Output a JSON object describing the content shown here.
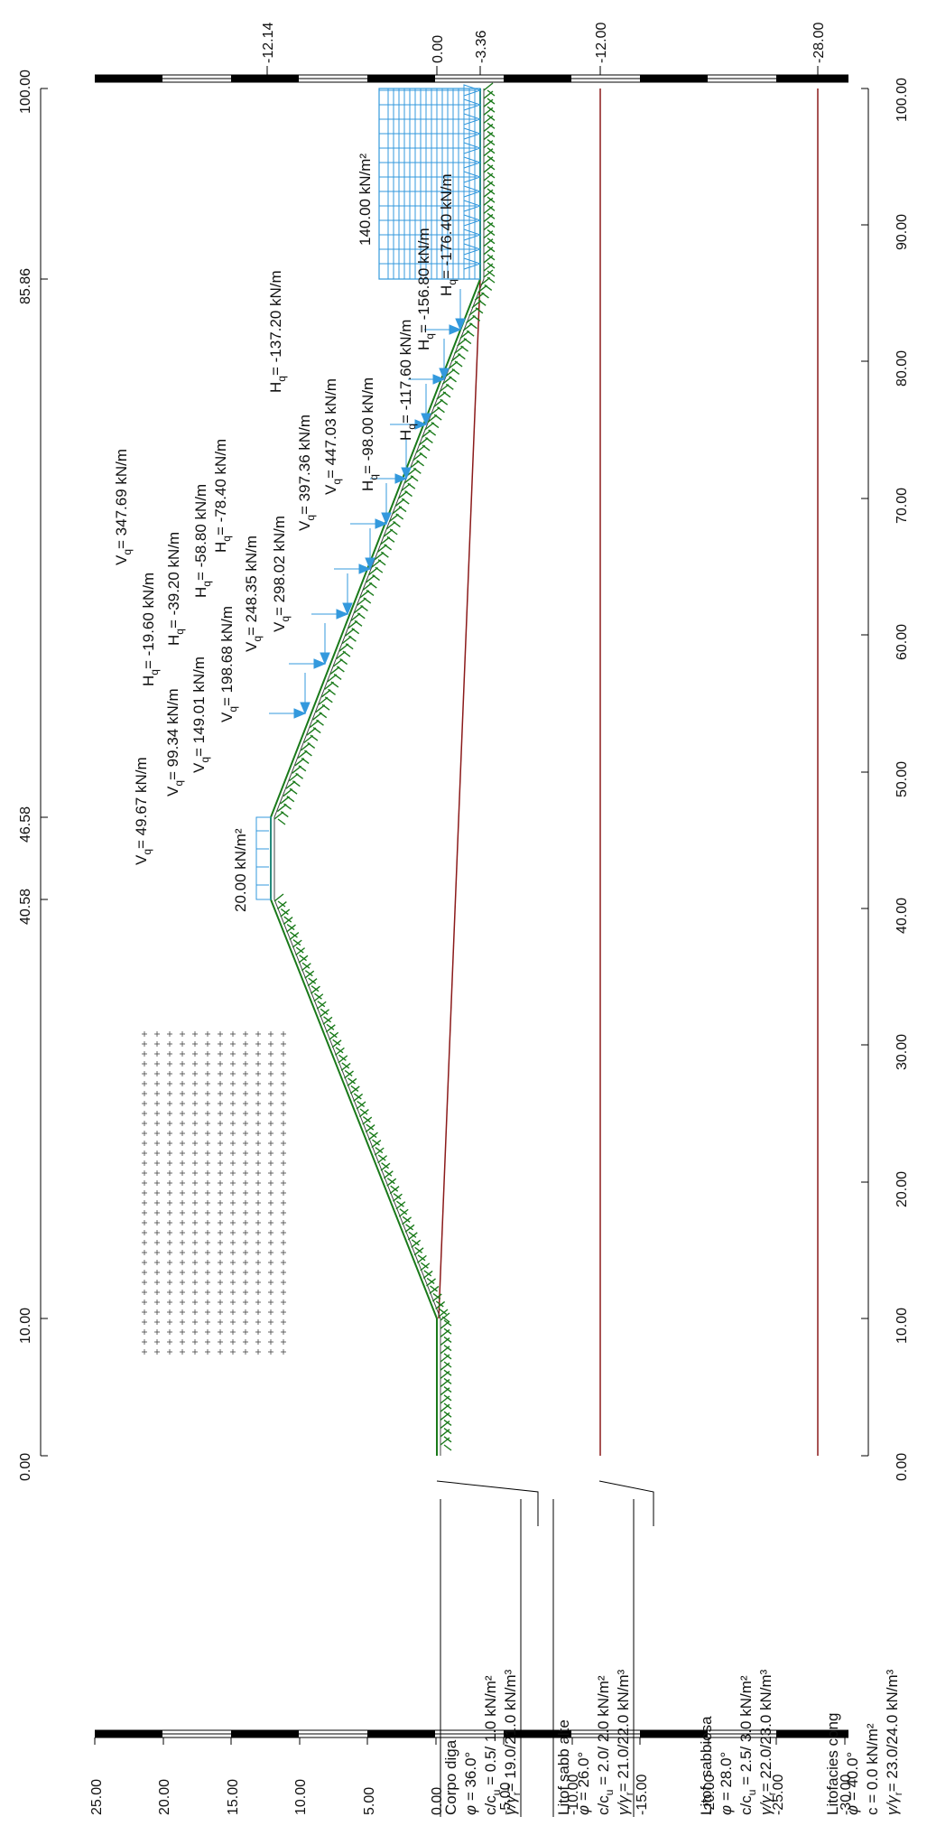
{
  "top_scale": {
    "labels": [
      "-12.14",
      "0.00",
      "-3.36",
      "-12.00",
      "-28.00"
    ]
  },
  "x_labels_left": [
    "0.00",
    "10.00",
    "40.58",
    "46.58",
    "85.86",
    "100.00"
  ],
  "x_labels_right": [
    "0.00",
    "10.00",
    "20.00",
    "30.00",
    "40.00",
    "50.00",
    "60.00",
    "70.00",
    "80.00",
    "90.00",
    "100.00"
  ],
  "y_scale": {
    "labels": [
      "25.00",
      "20.00",
      "15.00",
      "10.00",
      "5.00",
      "0.00",
      "-5.00",
      "-10.00",
      "-15.00",
      "-20.00",
      "-25.00",
      "-30.00"
    ]
  },
  "loads": {
    "crest_load": "20.00 kN/m²",
    "downstream_load": "140.00 kN/m²",
    "vertical": [
      {
        "label": "V",
        "sub": "q",
        "value": "= 49.67 kN/m"
      },
      {
        "label": "V",
        "sub": "q",
        "value": "= 99.34 kN/m"
      },
      {
        "label": "V",
        "sub": "q",
        "value": "= 149.01 kN/m"
      },
      {
        "label": "V",
        "sub": "q",
        "value": "= 198.68 kN/m"
      },
      {
        "label": "V",
        "sub": "q",
        "value": "= 248.35 kN/m"
      },
      {
        "label": "V",
        "sub": "q",
        "value": "= 298.02 kN/m"
      },
      {
        "label": "V",
        "sub": "q",
        "value": "= 347.69 kN/m"
      },
      {
        "label": "V",
        "sub": "q",
        "value": "= 397.36 kN/m"
      },
      {
        "label": "V",
        "sub": "q",
        "value": "= 447.03 kN/m"
      }
    ],
    "horizontal": [
      {
        "label": "H",
        "sub": "q",
        "value": "= -19.60 kN/m"
      },
      {
        "label": "H",
        "sub": "q",
        "value": "= -39.20 kN/m"
      },
      {
        "label": "H",
        "sub": "q",
        "value": "= -58.80 kN/m"
      },
      {
        "label": "H",
        "sub": "q",
        "value": "= -78.40 kN/m"
      },
      {
        "label": "H",
        "sub": "q",
        "value": "= -98.00 kN/m"
      },
      {
        "label": "H",
        "sub": "q",
        "value": "= -117.60 kN/m"
      },
      {
        "label": "H",
        "sub": "q",
        "value": "= -137.20 kN/m"
      },
      {
        "label": "H",
        "sub": "q",
        "value": "= -156.80 kN/m"
      },
      {
        "label": "H",
        "sub": "q",
        "value": "= -176.40 kN/m"
      }
    ]
  },
  "materials": [
    {
      "name": "Corpo diga",
      "phi": "=   36.0°",
      "c": "=   0.5/ 1.0 kN/m²",
      "c_label": "c/c",
      "gamma": "= 19.0/21.0 kN/m³"
    },
    {
      "name": "Litof sabb alte",
      "phi": "=   26.0°",
      "c": "=   2.0/ 2.0 kN/m²",
      "c_label": "c/c",
      "gamma": "= 21.0/22.0 kN/m³"
    },
    {
      "name": "Litof. sabbiosa",
      "phi": "=   28.0°",
      "c": "=   2.5/ 3.0 kN/m²",
      "c_label": "c/c",
      "gamma": "= 22.0/23.0 kN/m³"
    },
    {
      "name": "Litofacies cong",
      "phi": "=   40.0°",
      "c": "=     0.0 kN/m²",
      "c_label": "c",
      "gamma": "= 23.0/24.0 kN/m³"
    }
  ],
  "colors": {
    "surface": "#1a7a1a",
    "layer_line": "#8b1a1a",
    "load": "#3399dd",
    "text": "#111111"
  }
}
